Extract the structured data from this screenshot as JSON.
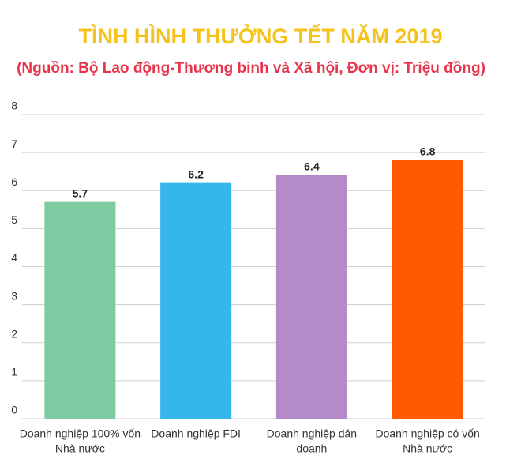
{
  "chart_data": {
    "type": "bar",
    "title": "TÌNH HÌNH THƯỞNG TẾT NĂM 2019",
    "subtitle": "(Nguồn: Bộ Lao động-Thương binh và Xã hội, Đơn vị: Triệu đồng)",
    "categories": [
      [
        "Doanh nghiệp 100% vốn",
        "Nhà nước"
      ],
      [
        "Doanh nghiệp FDI"
      ],
      [
        "Doanh nghiệp dân",
        "doanh"
      ],
      [
        "Doanh nghiệp có vốn",
        "Nhà nước"
      ]
    ],
    "values": [
      5.7,
      6.2,
      6.4,
      6.8
    ],
    "colors": [
      "#7ecba1",
      "#36b7ec",
      "#b38bc9",
      "#ff5a00"
    ],
    "ylim": [
      0,
      8
    ],
    "yticks": [
      0,
      1,
      2,
      3,
      4,
      5,
      6,
      7,
      8
    ],
    "grid": true
  }
}
